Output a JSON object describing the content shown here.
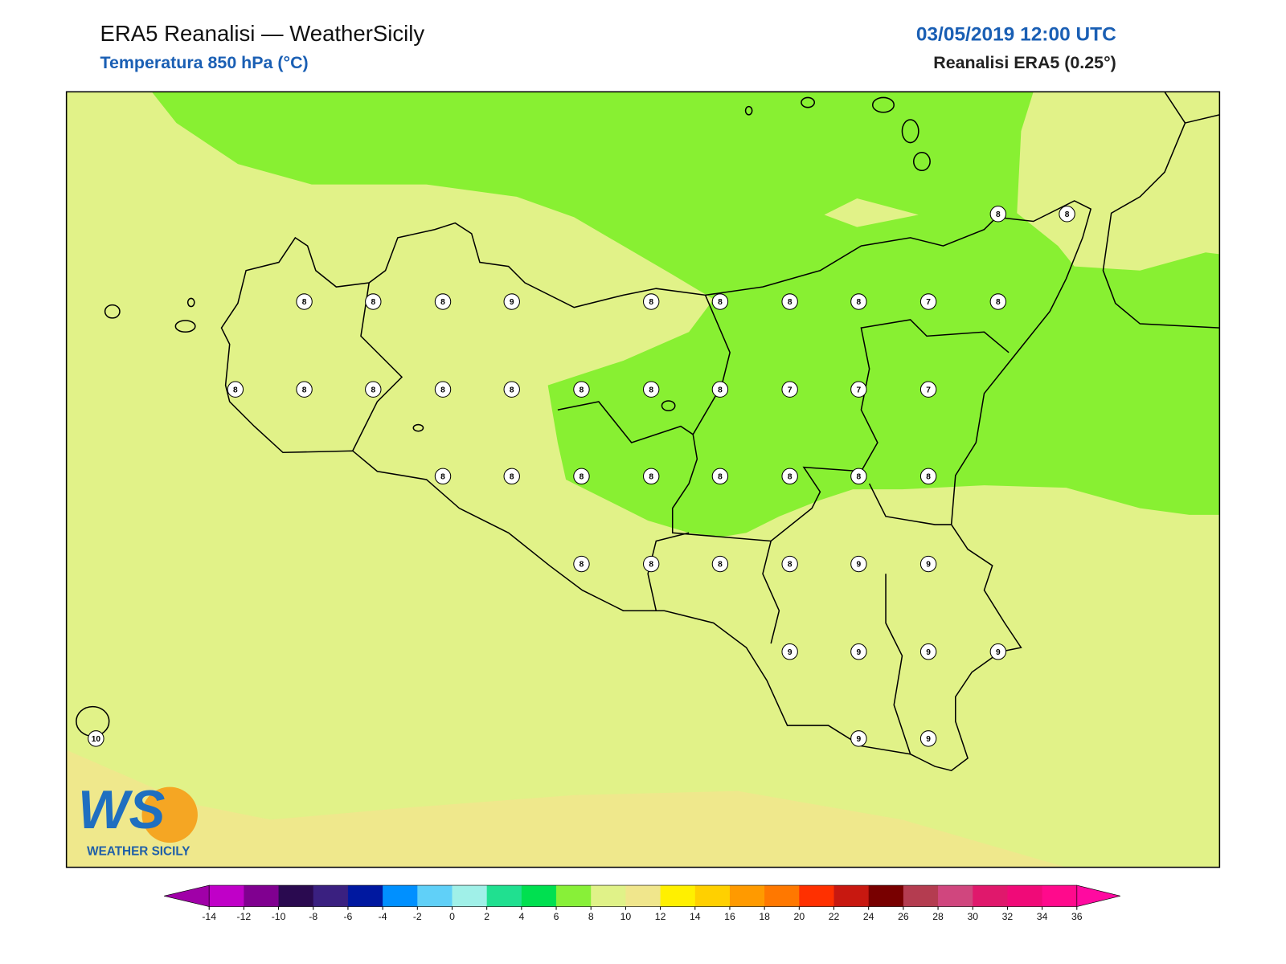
{
  "header": {
    "title": "ERA5 Reanalisi — WeatherSicily",
    "subtitle": "Temperatura 850 hPa (°C)",
    "datetime": "03/05/2019 12:00 UTC",
    "model": "Reanalisi ERA5 (0.25°)"
  },
  "map": {
    "stations": [
      "8",
      "8",
      "8",
      "8",
      "8",
      "9",
      "8",
      "8",
      "8",
      "8",
      "7",
      "8",
      "8",
      "8",
      "8",
      "8",
      "8",
      "8",
      "8",
      "8",
      "7",
      "7",
      "7",
      "8",
      "8",
      "8",
      "8",
      "8",
      "8",
      "8",
      "8",
      "8",
      "8",
      "8",
      "8",
      "9",
      "9",
      "9",
      "9",
      "9",
      "9",
      "10",
      "9",
      "9"
    ]
  },
  "logo": {
    "mark": "WS",
    "name": "WEATHER SICILY"
  },
  "colorbar": {
    "ticks": [
      -14,
      -12,
      -10,
      -8,
      -6,
      -4,
      -2,
      0,
      2,
      4,
      6,
      8,
      10,
      12,
      14,
      16,
      18,
      20,
      22,
      24,
      26,
      28,
      30,
      32,
      34,
      36
    ],
    "colors": [
      "#c000c8",
      "#800090",
      "#2a0a50",
      "#3a2080",
      "#0018a0",
      "#0090ff",
      "#60d0f8",
      "#a0f0e8",
      "#20e090",
      "#00e050",
      "#88f038",
      "#e0f288",
      "#f0e68c",
      "#fff000",
      "#ffd000",
      "#ff9a00",
      "#ff7800",
      "#ff3000",
      "#c81810",
      "#780000",
      "#b43c50",
      "#d0467e",
      "#e0186c",
      "#f00a78",
      "#ff0a8c"
    ],
    "under_color": "#a000a8",
    "over_color": "#ff0aa0"
  }
}
